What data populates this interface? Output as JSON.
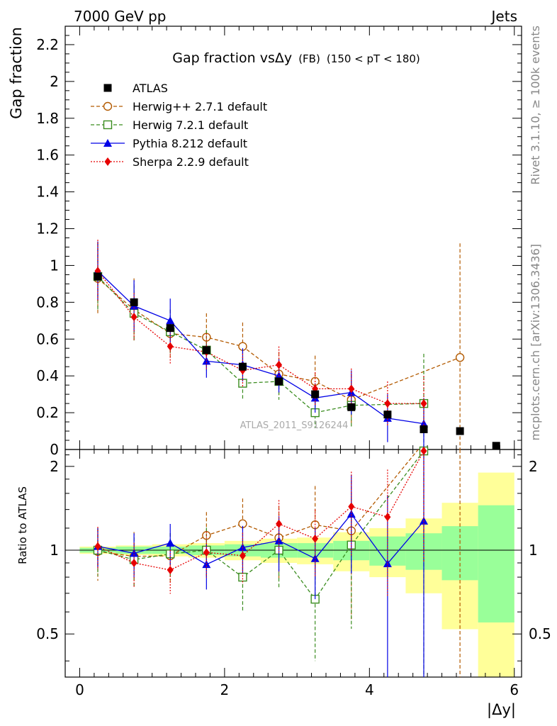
{
  "header": {
    "left": "7000 GeV pp",
    "right": "Jets"
  },
  "side": {
    "rivet": "Rivet 3.1.10, ≥ 100k events",
    "mcplots": "mcplots.cern.ch [arXiv:1306.3436]"
  },
  "chart_data": {
    "type": "scatter",
    "title_main": "Gap fraction vsΔy",
    "title_fb": "(FB)",
    "title_cut": "(150 < pT < 180)",
    "watermark": "ATLAS_2011_S9126244",
    "ylabel_top": "Gap fraction",
    "ylabel_bottom": "Ratio to ATLAS",
    "xlabel": "|Δy|",
    "xlim": [
      -0.2,
      6.1
    ],
    "ylim_top": [
      0,
      2.3
    ],
    "ylim_bottom": [
      0.35,
      2.3
    ],
    "yticks_top": [
      "0",
      "0.2",
      "0.4",
      "0.6",
      "0.8",
      "1",
      "1.2",
      "1.4",
      "1.6",
      "1.8",
      "2",
      "2.2"
    ],
    "yticks_bottom": [
      "0.5",
      "1",
      "2"
    ],
    "xticks": [
      "0",
      "2",
      "4",
      "6"
    ],
    "x": [
      0.25,
      0.75,
      1.25,
      1.75,
      2.25,
      2.75,
      3.25,
      3.75,
      4.25,
      4.75,
      5.25,
      5.75
    ],
    "data": {
      "name": "ATLAS",
      "values": [
        0.94,
        0.8,
        0.66,
        0.54,
        0.45,
        0.37,
        0.3,
        0.23,
        0.19,
        0.11,
        0.1,
        0.02
      ],
      "band_inner": [
        0.02,
        0.03,
        0.03,
        0.04,
        0.05,
        0.06,
        0.06,
        0.08,
        0.12,
        0.15,
        0.22,
        0.45
      ],
      "band_outer": [
        0.03,
        0.04,
        0.05,
        0.06,
        0.08,
        0.1,
        0.11,
        0.16,
        0.2,
        0.3,
        0.48,
        0.9
      ]
    },
    "series": [
      {
        "name": "Herwig++ 2.7.1 default",
        "color": "#b35a00",
        "marker": "circle",
        "values": [
          0.93,
          0.76,
          0.63,
          0.61,
          0.56,
          0.41,
          0.37,
          0.27,
          null,
          null,
          0.5,
          null
        ],
        "errors": [
          0.2,
          0.17,
          0.13,
          0.13,
          0.13,
          0.12,
          0.14,
          0.14,
          null,
          null,
          0.62,
          null
        ]
      },
      {
        "name": "Herwig 7.2.1 default",
        "color": "#3a8c1f",
        "marker": "square",
        "values": [
          0.94,
          0.74,
          0.64,
          0.54,
          0.36,
          0.37,
          0.2,
          0.24,
          null,
          0.25,
          null,
          null
        ],
        "errors": [
          0.18,
          0.15,
          0.12,
          0.11,
          0.09,
          0.1,
          0.08,
          0.12,
          null,
          0.27,
          null,
          null
        ]
      },
      {
        "name": "Pythia 8.212 default",
        "color": "#0000e6",
        "marker": "triangle",
        "values": [
          0.97,
          0.78,
          0.7,
          0.48,
          0.46,
          0.4,
          0.28,
          0.31,
          0.17,
          0.14,
          null,
          null
        ],
        "errors": [
          0.16,
          0.14,
          0.12,
          0.09,
          0.09,
          0.09,
          0.08,
          0.12,
          0.13,
          0.14,
          null,
          null
        ]
      },
      {
        "name": "Sherpa 2.2.9 default",
        "color": "#e60000",
        "marker": "diamond",
        "values": [
          0.97,
          0.72,
          0.56,
          0.53,
          0.43,
          0.46,
          0.33,
          0.33,
          0.25,
          0.25,
          null,
          null
        ],
        "errors": [
          0.17,
          0.13,
          0.1,
          0.1,
          0.09,
          0.1,
          0.09,
          0.11,
          0.12,
          0.15,
          null,
          null
        ]
      }
    ]
  }
}
